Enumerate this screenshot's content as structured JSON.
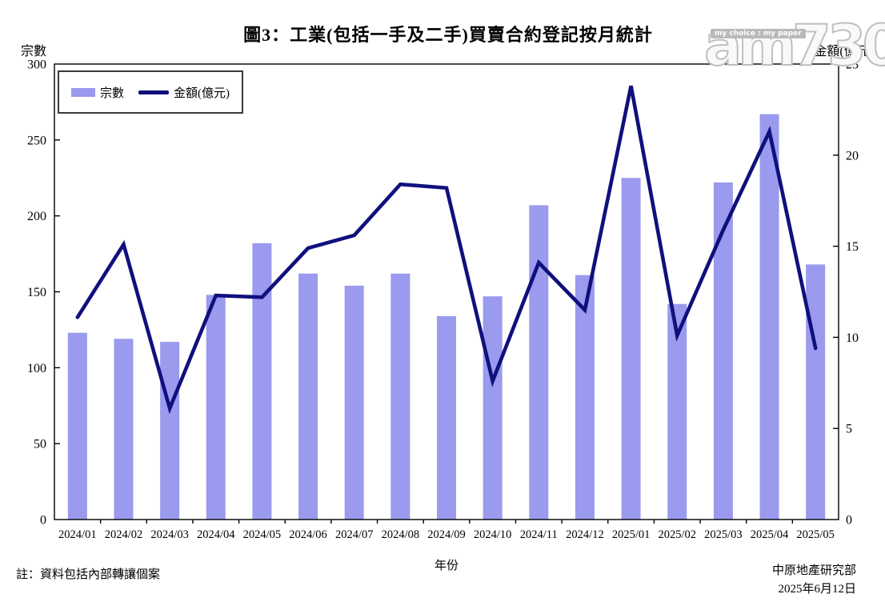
{
  "page": {
    "title": "圖3：工業(包括一手及二手)買賣合約登記按月統計",
    "note": "註：資料包括內部轉讓個案",
    "source_org": "中原地產研究部",
    "source_date": "2025年6月12日",
    "watermark": {
      "main": "am730",
      "tagline": "my choice : my paper"
    }
  },
  "chart_data": {
    "type": "bar",
    "subtype": "bar-line-combo",
    "title": "圖3：工業(包括一手及二手)買賣合約登記按月統計",
    "xlabel": "年份",
    "left_axis_label": "宗數",
    "right_axis_label": "金額(億元)",
    "categories": [
      "2024/01",
      "2024/02",
      "2024/03",
      "2024/04",
      "2024/05",
      "2024/06",
      "2024/07",
      "2024/08",
      "2024/09",
      "2024/10",
      "2024/11",
      "2024/12",
      "2025/01",
      "2025/02",
      "2025/03",
      "2025/04",
      "2025/05"
    ],
    "series": [
      {
        "name": "宗數",
        "type": "bar",
        "axis": "left",
        "color": "#9a9aee",
        "values": [
          123,
          119,
          117,
          148,
          182,
          162,
          154,
          162,
          134,
          147,
          207,
          161,
          225,
          142,
          222,
          267,
          168
        ]
      },
      {
        "name": "金額(億元)",
        "type": "line",
        "axis": "right",
        "color": "#10107d",
        "values": [
          11.1,
          15.1,
          6.1,
          12.3,
          12.2,
          14.9,
          15.6,
          18.4,
          18.2,
          7.6,
          14.1,
          11.5,
          23.8,
          10.1,
          15.9,
          21.3,
          9.4
        ]
      }
    ],
    "left_axis": {
      "min": 0,
      "max": 300,
      "step": 50
    },
    "right_axis": {
      "min": 0,
      "max": 25,
      "step": 5
    },
    "grid": false,
    "legend_position": "inside-top-left",
    "axis_color": "#000000"
  }
}
